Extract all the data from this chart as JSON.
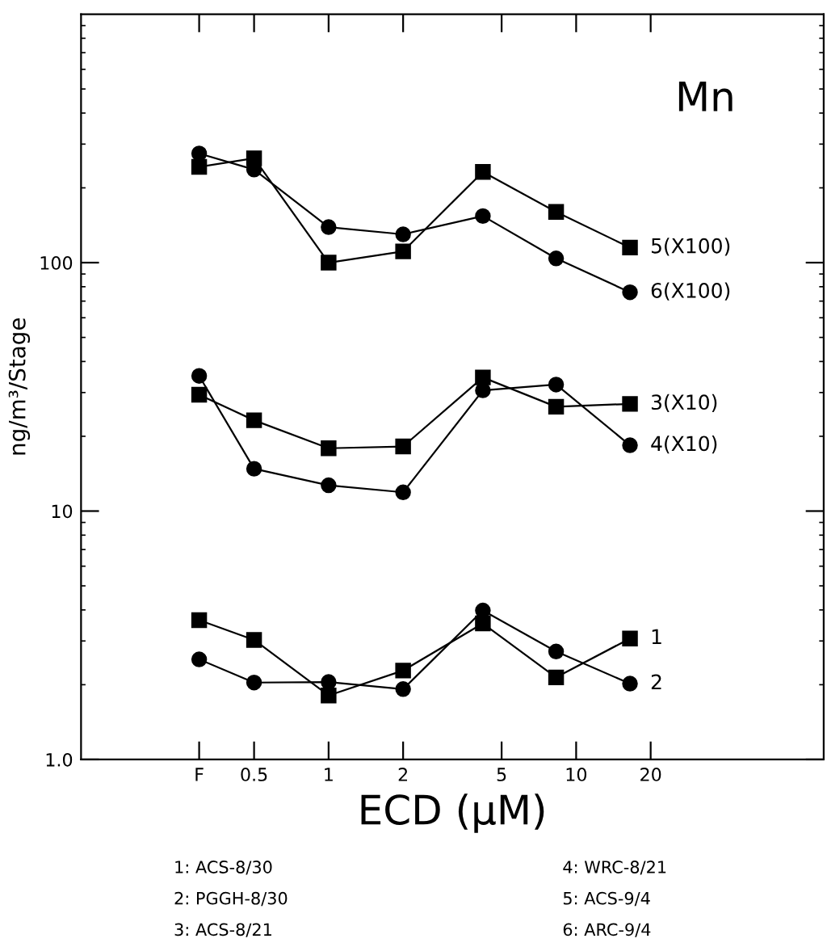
{
  "chart_data": {
    "type": "line",
    "xlabel": "ECD (μM)",
    "ylabel": "ng/m³/Stage",
    "log": "xy",
    "xlim": [
      0.1,
      100
    ],
    "ylim": [
      1,
      1000
    ],
    "xticks": [
      {
        "value": 0.3,
        "label": "F"
      },
      0.5,
      1,
      2,
      5,
      10,
      20
    ],
    "yticks": [
      {
        "value": 1,
        "label": "1.0"
      },
      10,
      100
    ],
    "x": [
      0.3,
      0.5,
      1,
      2,
      4.2,
      8.3,
      16.5
    ],
    "grid": false,
    "legend": false,
    "line_style": "solid",
    "series": [
      {
        "name": "5(X100)",
        "color": "#000000",
        "marker": "square",
        "values": [
          243,
          263,
          100,
          111,
          232,
          160,
          115
        ]
      },
      {
        "name": "6(X100)",
        "color": "#000000",
        "marker": "circle",
        "values": [
          275,
          237,
          139,
          130,
          154,
          104,
          76
        ]
      },
      {
        "name": "3(X10)",
        "color": "#000000",
        "marker": "square",
        "values": [
          29.4,
          23.2,
          17.9,
          18.2,
          34.5,
          26.3,
          27.0
        ]
      },
      {
        "name": "4(X10)",
        "color": "#000000",
        "marker": "circle",
        "values": [
          35.0,
          14.8,
          12.7,
          11.9,
          30.6,
          32.3,
          18.4
        ]
      },
      {
        "name": "1",
        "color": "#000000",
        "marker": "square",
        "values": [
          3.64,
          3.03,
          1.81,
          2.28,
          3.53,
          2.14,
          3.07
        ]
      },
      {
        "name": "2",
        "color": "#000000",
        "marker": "circle",
        "values": [
          2.53,
          2.04,
          2.05,
          1.92,
          3.98,
          2.72,
          2.02
        ]
      }
    ],
    "annotations": [
      "Mn",
      "1: ACS-8/30",
      "2: PGGH-8/30",
      "3: ACS-8/21",
      "4: WRC-8/21",
      "5: ACS-9/4",
      "6: ARC-9/4"
    ]
  }
}
